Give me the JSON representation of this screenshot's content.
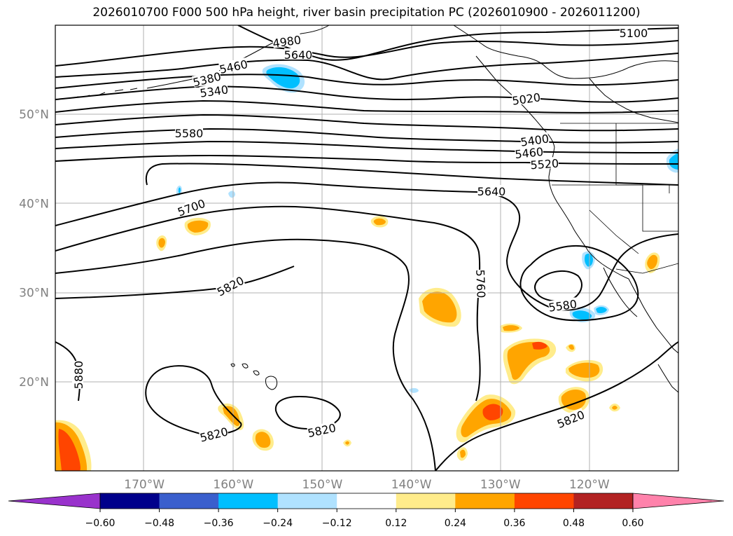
{
  "title": "2026010700 F000 500 hPa height, river basin precipitation PC (2026010900 - 2026011200)",
  "map": {
    "lon_ticks": [
      "170°W",
      "160°W",
      "150°W",
      "140°W",
      "130°W",
      "120°W"
    ],
    "lat_ticks": [
      "50°N",
      "40°N",
      "30°N",
      "20°N"
    ],
    "lon_range": [
      -180,
      -110
    ],
    "lat_range": [
      10,
      60
    ],
    "grid": true,
    "contour_color": "#000000",
    "contour_labels": [
      {
        "text": "5100"
      },
      {
        "text": "4980"
      },
      {
        "text": "5640"
      },
      {
        "text": "5460"
      },
      {
        "text": "5380"
      },
      {
        "text": "5340"
      },
      {
        "text": "5020"
      },
      {
        "text": "5580"
      },
      {
        "text": "5400"
      },
      {
        "text": "5460"
      },
      {
        "text": "5520"
      },
      {
        "text": "5640"
      },
      {
        "text": "5700"
      },
      {
        "text": "5760"
      },
      {
        "text": "5820"
      },
      {
        "text": "5580"
      },
      {
        "text": "5880"
      },
      {
        "text": "5820"
      },
      {
        "text": "5820"
      },
      {
        "text": "5820"
      }
    ]
  },
  "colorbar": {
    "ticks": [
      "−0.60",
      "−0.48",
      "−0.36",
      "−0.24",
      "−0.12",
      "0.12",
      "0.24",
      "0.36",
      "0.48",
      "0.60"
    ],
    "colors": [
      "#9932cc",
      "#00008b",
      "#3a5fcd",
      "#00bfff",
      "#b0e2ff",
      "#ffffff",
      "#ffec8b",
      "#ffa500",
      "#ff4500",
      "#b22222",
      "#ff82ab"
    ],
    "extend": "both"
  }
}
